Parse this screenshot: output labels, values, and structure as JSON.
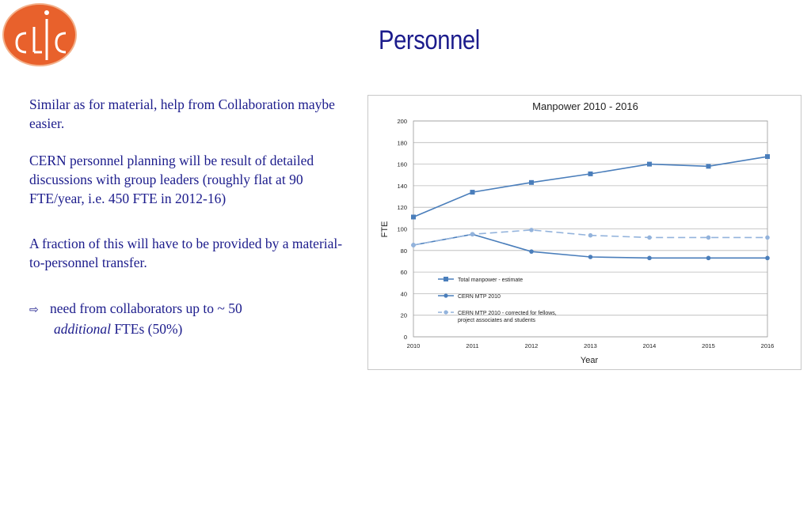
{
  "slide": {
    "title": "Personnel",
    "paragraphs": {
      "p1": "Similar as for material, help from Collaboration maybe easier.",
      "p2": "CERN personnel planning will be result of detailed discussions with group leaders (roughly flat at 90 FTE/year, i.e. 450 FTE in 2012-16)",
      "p3": "A fraction of this will have to be provided by  a material-to-personnel transfer.",
      "p4_line1": "need from collaborators  up  to ~ 50",
      "p4_italic": "additional",
      "p4_rest": " FTEs (50%)"
    },
    "arrow_icon": "⇨",
    "logo_colors": {
      "fill": "#e8612c",
      "ring": "#f3b08a"
    }
  },
  "chart_data": {
    "type": "line",
    "title": "Manpower 2010 - 2016",
    "xlabel": "Year",
    "ylabel": "FTE",
    "x": [
      2010,
      2011,
      2012,
      2013,
      2014,
      2015,
      2016
    ],
    "ylim": [
      0,
      200
    ],
    "yticks": [
      0,
      20,
      40,
      60,
      80,
      100,
      120,
      140,
      160,
      180,
      200
    ],
    "grid": "horizontal",
    "legend_position": "inside-bottom-left",
    "series": [
      {
        "name": "Total manpower - estimate",
        "values": [
          111,
          134,
          143,
          151,
          160,
          158,
          167
        ],
        "color": "#4a7ebb",
        "marker": "square",
        "dash": "solid"
      },
      {
        "name": "CERN MTP 2010",
        "values": [
          85,
          95,
          79,
          74,
          73,
          73,
          73
        ],
        "color": "#4a7ebb",
        "marker": "circle",
        "dash": "solid"
      },
      {
        "name": "CERN MTP 2010 - corrected for fellows, project associates and students",
        "name_lines": [
          "CERN MTP 2010 - corrected for fellows,",
          "project associates and students"
        ],
        "values": [
          85,
          95,
          99,
          94,
          92,
          92,
          92
        ],
        "color": "#93b3dc",
        "marker": "circle",
        "dash": "dashed"
      }
    ]
  }
}
